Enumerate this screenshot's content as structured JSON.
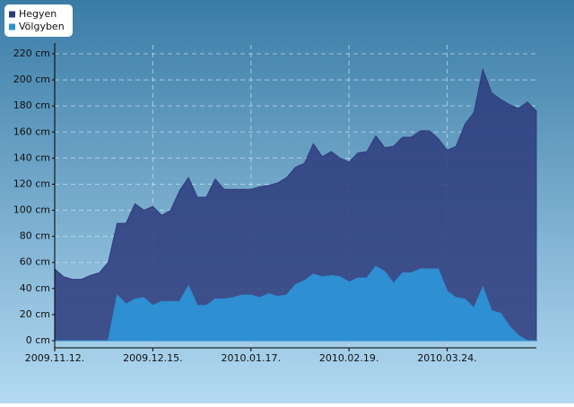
{
  "chart_data": {
    "type": "area",
    "x": [
      "2009.11.12.",
      "2009.11.15.",
      "2009.11.18.",
      "2009.11.21.",
      "2009.11.24.",
      "2009.11.27.",
      "2009.11.30.",
      "2009.12.03.",
      "2009.12.06.",
      "2009.12.09.",
      "2009.12.12.",
      "2009.12.15.",
      "2009.12.18.",
      "2009.12.21.",
      "2009.12.24.",
      "2009.12.27.",
      "2009.12.30.",
      "2010.01.02.",
      "2010.01.05.",
      "2010.01.08.",
      "2010.01.11.",
      "2010.01.14.",
      "2010.01.17.",
      "2010.01.20.",
      "2010.01.23.",
      "2010.01.26.",
      "2010.01.29.",
      "2010.02.01.",
      "2010.02.04.",
      "2010.02.07.",
      "2010.02.10.",
      "2010.02.13.",
      "2010.02.16.",
      "2010.02.19.",
      "2010.02.22.",
      "2010.02.25.",
      "2010.02.28.",
      "2010.03.03.",
      "2010.03.06.",
      "2010.03.09.",
      "2010.03.12.",
      "2010.03.15.",
      "2010.03.18.",
      "2010.03.21.",
      "2010.03.24.",
      "2010.03.27.",
      "2010.03.30.",
      "2010.04.02.",
      "2010.04.05.",
      "2010.04.08.",
      "2010.04.11.",
      "2010.04.14.",
      "2010.04.17.",
      "2010.04.20.",
      "2010.04.23."
    ],
    "series": [
      {
        "name": "Hegyen",
        "color": "#2d3b7c",
        "values": [
          55,
          49,
          47,
          47,
          50,
          52,
          60,
          90,
          90,
          105,
          100,
          103,
          96,
          100,
          115,
          125,
          110,
          110,
          124,
          116,
          116,
          116,
          116,
          118,
          119,
          121,
          125,
          133,
          136,
          151,
          141,
          145,
          140,
          137,
          144,
          145,
          157,
          148,
          149,
          156,
          156,
          161,
          161,
          155,
          146,
          149,
          166,
          175,
          208,
          190,
          185,
          181,
          178,
          183,
          176
        ]
      },
      {
        "name": "Völgyben",
        "color": "#2e8fd2",
        "values": [
          0,
          0,
          0,
          0,
          0,
          0,
          0,
          35,
          28,
          32,
          33,
          27,
          30,
          30,
          30,
          42,
          27,
          27,
          32,
          32,
          33,
          35,
          35,
          33,
          36,
          34,
          35,
          43,
          46,
          51,
          49,
          50,
          49,
          45,
          48,
          48,
          57,
          53,
          44,
          52,
          52,
          55,
          55,
          55,
          38,
          33,
          32,
          25,
          41,
          23,
          21,
          11,
          4,
          0,
          0
        ]
      }
    ],
    "xlim": [
      "2009.11.12.",
      "2010.04.23."
    ],
    "xticks": [
      "2009.11.12.",
      "2009.12.15.",
      "2010.01.17.",
      "2010.02.19.",
      "2010.03.24."
    ],
    "ylim": [
      0,
      220
    ],
    "yticks": [
      {
        "value": 0,
        "label": "0 cm"
      },
      {
        "value": 20,
        "label": "20 cm"
      },
      {
        "value": 40,
        "label": "40 cm"
      },
      {
        "value": 60,
        "label": "60 cm"
      },
      {
        "value": 80,
        "label": "80 cm"
      },
      {
        "value": 100,
        "label": "100 cm"
      },
      {
        "value": 120,
        "label": "120 cm"
      },
      {
        "value": 140,
        "label": "140 cm"
      },
      {
        "value": 160,
        "label": "160 cm"
      },
      {
        "value": 180,
        "label": "180 cm"
      },
      {
        "value": 200,
        "label": "200 cm"
      },
      {
        "value": 220,
        "label": "220 cm"
      }
    ],
    "grid": true
  }
}
